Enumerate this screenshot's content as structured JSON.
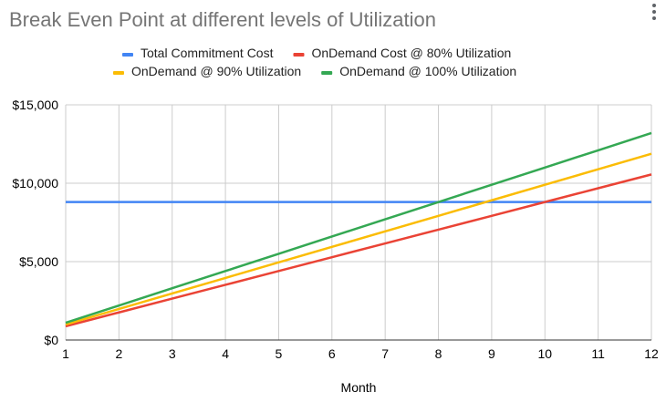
{
  "chart_data": {
    "type": "line",
    "title": "Break Even Point at different levels of Utilization",
    "xlabel": "Month",
    "ylabel": "",
    "x": [
      1,
      2,
      3,
      4,
      5,
      6,
      7,
      8,
      9,
      10,
      11,
      12
    ],
    "xlim": [
      1,
      12
    ],
    "ylim": [
      0,
      15000
    ],
    "y_ticks": [
      "$0",
      "$5,000",
      "$10,000",
      "$15,000"
    ],
    "x_ticks": [
      "1",
      "2",
      "3",
      "4",
      "5",
      "6",
      "7",
      "8",
      "9",
      "10",
      "11",
      "12"
    ],
    "grid": true,
    "legend_position": "top",
    "series": [
      {
        "name": "Total Commitment Cost",
        "color": "#4285f4",
        "values": [
          8800,
          8800,
          8800,
          8800,
          8800,
          8800,
          8800,
          8800,
          8800,
          8800,
          8800,
          8800
        ]
      },
      {
        "name": "OnDemand Cost @ 80% Utilization",
        "color": "#ea4335",
        "values": [
          880,
          1760,
          2640,
          3520,
          4400,
          5280,
          6160,
          7040,
          7920,
          8800,
          9680,
          10560
        ]
      },
      {
        "name": "OnDemand @ 90% Utilization",
        "color": "#fbbc04",
        "values": [
          990,
          1980,
          2970,
          3960,
          4950,
          5940,
          6930,
          7920,
          8910,
          9900,
          10890,
          11880
        ]
      },
      {
        "name": "OnDemand @ 100% Utilization",
        "color": "#34a853",
        "values": [
          1100,
          2200,
          3300,
          4400,
          5500,
          6600,
          7700,
          8800,
          9900,
          11000,
          12100,
          13200
        ]
      }
    ]
  },
  "menu": {
    "icon": "more-vert-icon"
  }
}
